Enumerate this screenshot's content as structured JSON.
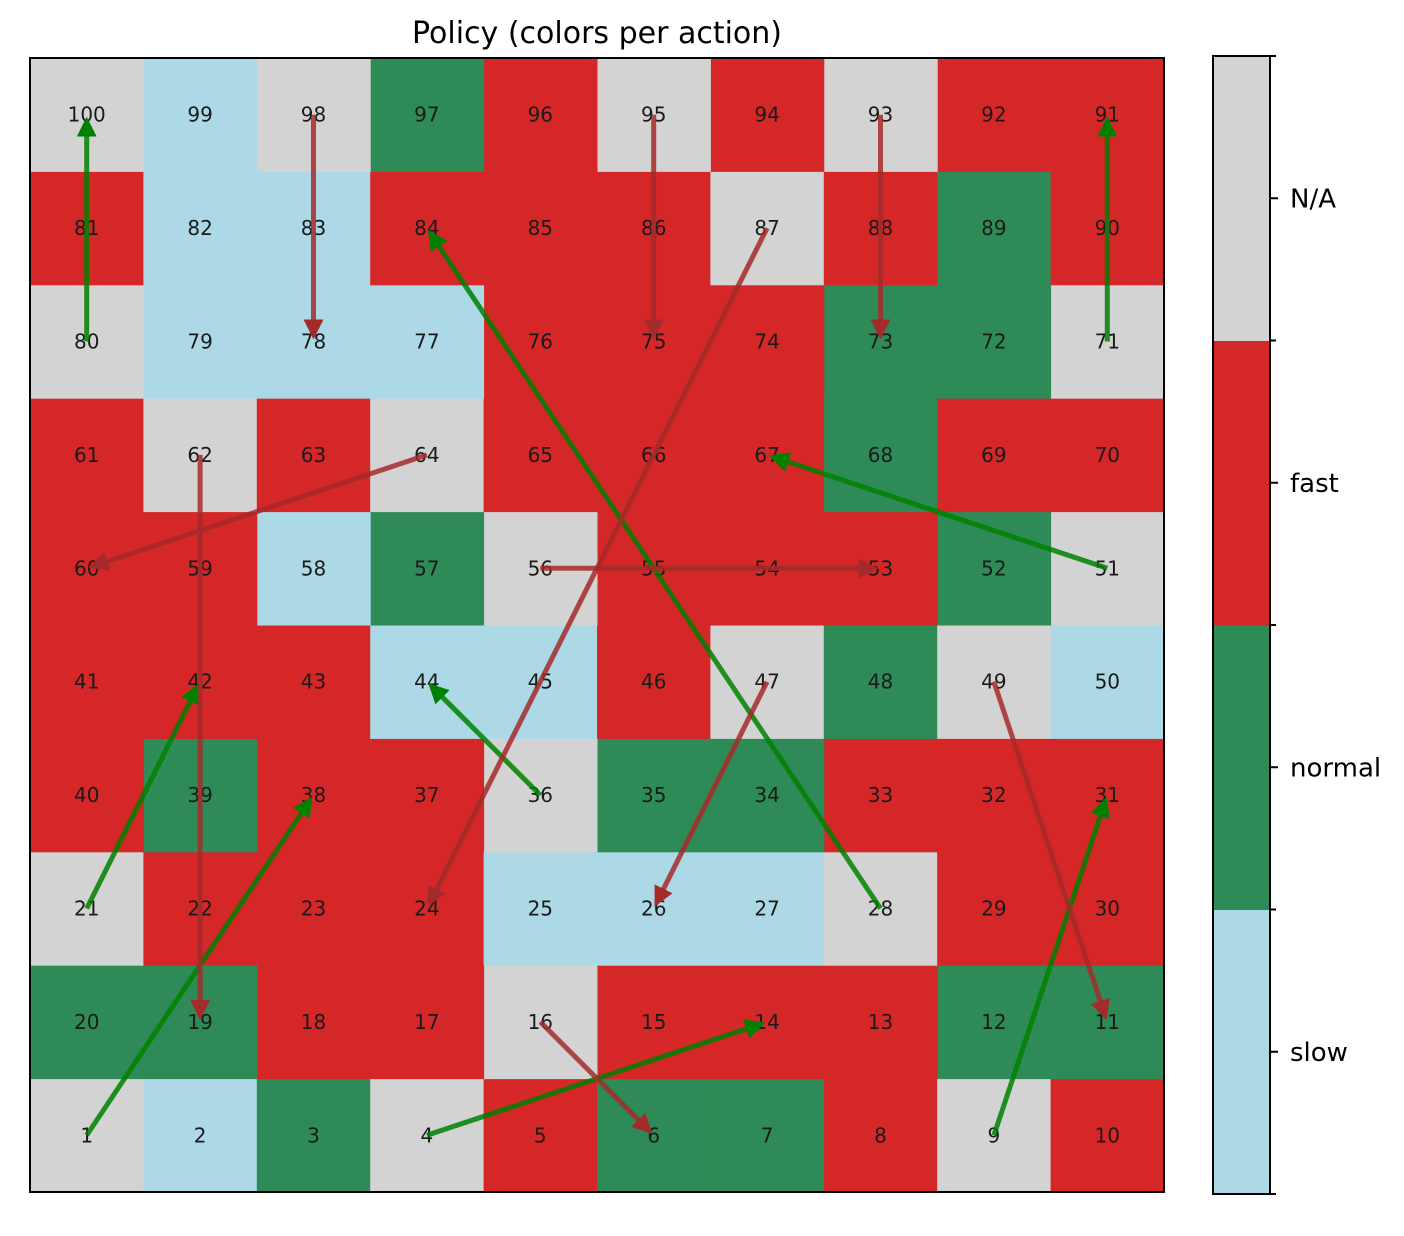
{
  "chart_data": {
    "type": "heatmap",
    "title": "Policy (colors per action)",
    "grid_size": 10,
    "layout": "boustrophedon",
    "actions": [
      "slow",
      "normal",
      "fast",
      "N/A"
    ],
    "action_colors": {
      "slow": "#add8e6",
      "normal": "#2e8b57",
      "fast": "#d62728",
      "N/A": "#d3d3d3"
    },
    "cells": [
      {
        "n": 1,
        "action": "N/A"
      },
      {
        "n": 2,
        "action": "slow"
      },
      {
        "n": 3,
        "action": "normal"
      },
      {
        "n": 4,
        "action": "N/A"
      },
      {
        "n": 5,
        "action": "fast"
      },
      {
        "n": 6,
        "action": "normal"
      },
      {
        "n": 7,
        "action": "normal"
      },
      {
        "n": 8,
        "action": "fast"
      },
      {
        "n": 9,
        "action": "N/A"
      },
      {
        "n": 10,
        "action": "fast"
      },
      {
        "n": 11,
        "action": "normal"
      },
      {
        "n": 12,
        "action": "normal"
      },
      {
        "n": 13,
        "action": "fast"
      },
      {
        "n": 14,
        "action": "fast"
      },
      {
        "n": 15,
        "action": "fast"
      },
      {
        "n": 16,
        "action": "N/A"
      },
      {
        "n": 17,
        "action": "fast"
      },
      {
        "n": 18,
        "action": "fast"
      },
      {
        "n": 19,
        "action": "normal"
      },
      {
        "n": 20,
        "action": "normal"
      },
      {
        "n": 21,
        "action": "N/A"
      },
      {
        "n": 22,
        "action": "fast"
      },
      {
        "n": 23,
        "action": "fast"
      },
      {
        "n": 24,
        "action": "fast"
      },
      {
        "n": 25,
        "action": "slow"
      },
      {
        "n": 26,
        "action": "slow"
      },
      {
        "n": 27,
        "action": "slow"
      },
      {
        "n": 28,
        "action": "N/A"
      },
      {
        "n": 29,
        "action": "fast"
      },
      {
        "n": 30,
        "action": "fast"
      },
      {
        "n": 31,
        "action": "fast"
      },
      {
        "n": 32,
        "action": "fast"
      },
      {
        "n": 33,
        "action": "fast"
      },
      {
        "n": 34,
        "action": "normal"
      },
      {
        "n": 35,
        "action": "normal"
      },
      {
        "n": 36,
        "action": "N/A"
      },
      {
        "n": 37,
        "action": "fast"
      },
      {
        "n": 38,
        "action": "fast"
      },
      {
        "n": 39,
        "action": "normal"
      },
      {
        "n": 40,
        "action": "fast"
      },
      {
        "n": 41,
        "action": "fast"
      },
      {
        "n": 42,
        "action": "fast"
      },
      {
        "n": 43,
        "action": "fast"
      },
      {
        "n": 44,
        "action": "slow"
      },
      {
        "n": 45,
        "action": "slow"
      },
      {
        "n": 46,
        "action": "fast"
      },
      {
        "n": 47,
        "action": "N/A"
      },
      {
        "n": 48,
        "action": "normal"
      },
      {
        "n": 49,
        "action": "N/A"
      },
      {
        "n": 50,
        "action": "slow"
      },
      {
        "n": 51,
        "action": "N/A"
      },
      {
        "n": 52,
        "action": "normal"
      },
      {
        "n": 53,
        "action": "fast"
      },
      {
        "n": 54,
        "action": "fast"
      },
      {
        "n": 55,
        "action": "fast"
      },
      {
        "n": 56,
        "action": "N/A"
      },
      {
        "n": 57,
        "action": "normal"
      },
      {
        "n": 58,
        "action": "slow"
      },
      {
        "n": 59,
        "action": "fast"
      },
      {
        "n": 60,
        "action": "fast"
      },
      {
        "n": 61,
        "action": "fast"
      },
      {
        "n": 62,
        "action": "N/A"
      },
      {
        "n": 63,
        "action": "fast"
      },
      {
        "n": 64,
        "action": "N/A"
      },
      {
        "n": 65,
        "action": "fast"
      },
      {
        "n": 66,
        "action": "fast"
      },
      {
        "n": 67,
        "action": "fast"
      },
      {
        "n": 68,
        "action": "normal"
      },
      {
        "n": 69,
        "action": "fast"
      },
      {
        "n": 70,
        "action": "fast"
      },
      {
        "n": 71,
        "action": "N/A"
      },
      {
        "n": 72,
        "action": "normal"
      },
      {
        "n": 73,
        "action": "normal"
      },
      {
        "n": 74,
        "action": "fast"
      },
      {
        "n": 75,
        "action": "fast"
      },
      {
        "n": 76,
        "action": "fast"
      },
      {
        "n": 77,
        "action": "slow"
      },
      {
        "n": 78,
        "action": "slow"
      },
      {
        "n": 79,
        "action": "slow"
      },
      {
        "n": 80,
        "action": "N/A"
      },
      {
        "n": 81,
        "action": "fast"
      },
      {
        "n": 82,
        "action": "slow"
      },
      {
        "n": 83,
        "action": "slow"
      },
      {
        "n": 84,
        "action": "fast"
      },
      {
        "n": 85,
        "action": "fast"
      },
      {
        "n": 86,
        "action": "fast"
      },
      {
        "n": 87,
        "action": "N/A"
      },
      {
        "n": 88,
        "action": "fast"
      },
      {
        "n": 89,
        "action": "normal"
      },
      {
        "n": 90,
        "action": "fast"
      },
      {
        "n": 91,
        "action": "fast"
      },
      {
        "n": 92,
        "action": "fast"
      },
      {
        "n": 93,
        "action": "N/A"
      },
      {
        "n": 94,
        "action": "fast"
      },
      {
        "n": 95,
        "action": "N/A"
      },
      {
        "n": 96,
        "action": "fast"
      },
      {
        "n": 97,
        "action": "normal"
      },
      {
        "n": 98,
        "action": "N/A"
      },
      {
        "n": 99,
        "action": "slow"
      },
      {
        "n": 100,
        "action": "N/A"
      }
    ],
    "ladders": [
      {
        "from": 1,
        "to": 38
      },
      {
        "from": 4,
        "to": 14
      },
      {
        "from": 9,
        "to": 31
      },
      {
        "from": 21,
        "to": 42
      },
      {
        "from": 28,
        "to": 84
      },
      {
        "from": 36,
        "to": 44
      },
      {
        "from": 51,
        "to": 67
      },
      {
        "from": 71,
        "to": 91
      },
      {
        "from": 80,
        "to": 100
      }
    ],
    "snakes": [
      {
        "from": 16,
        "to": 6
      },
      {
        "from": 47,
        "to": 26
      },
      {
        "from": 49,
        "to": 11
      },
      {
        "from": 56,
        "to": 53
      },
      {
        "from": 62,
        "to": 19
      },
      {
        "from": 64,
        "to": 60
      },
      {
        "from": 87,
        "to": 24
      },
      {
        "from": 93,
        "to": 73
      },
      {
        "from": 95,
        "to": 75
      },
      {
        "from": 98,
        "to": 78
      }
    ],
    "ladder_color": "#008000",
    "snake_color": "#a52a2a",
    "colorbar": {
      "labels": [
        "slow",
        "normal",
        "fast",
        "N/A"
      ]
    }
  }
}
